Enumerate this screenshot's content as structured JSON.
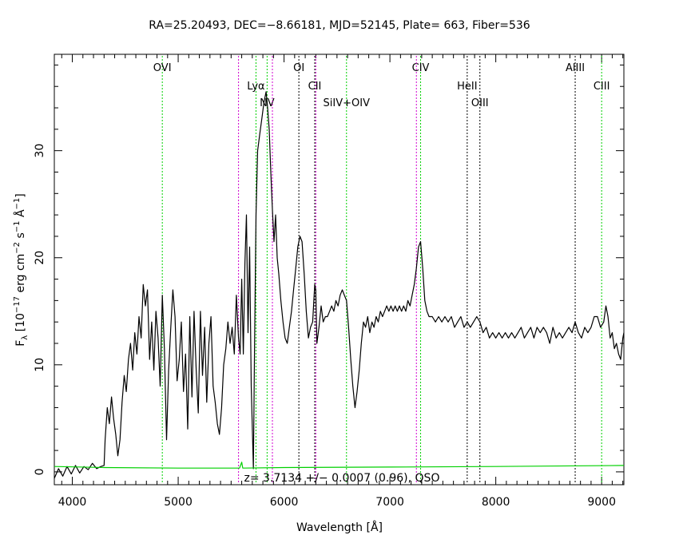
{
  "chart_data": {
    "type": "line",
    "title": "RA=25.20493, DEC=−8.66181, MJD=52145, Plate= 663, Fiber=536",
    "xlabel": "Wavelength [Å]",
    "ylabel_parts": [
      "F",
      "λ",
      " [10",
      "−17",
      " erg cm",
      "−2",
      " s",
      "−1",
      " Å",
      "−1",
      "]"
    ],
    "xlim": [
      3830,
      9210
    ],
    "ylim": [
      -1.2,
      39
    ],
    "x_ticks": [
      4000,
      5000,
      6000,
      7000,
      8000,
      9000
    ],
    "y_ticks": [
      0,
      10,
      20,
      30
    ],
    "redshift_label": "z= 3.7134 +/− 0.0007 (0.96), QSO",
    "series": [
      {
        "role": "flux",
        "color": "#000000",
        "points": [
          [
            3830,
            -0.6
          ],
          [
            3870,
            0.3
          ],
          [
            3910,
            -0.4
          ],
          [
            3950,
            0.5
          ],
          [
            3990,
            -0.2
          ],
          [
            4030,
            0.6
          ],
          [
            4070,
            -0.1
          ],
          [
            4110,
            0.5
          ],
          [
            4150,
            0.2
          ],
          [
            4190,
            0.8
          ],
          [
            4230,
            0.3
          ],
          [
            4270,
            0.5
          ],
          [
            4300,
            0.6
          ],
          [
            4310,
            3.0
          ],
          [
            4330,
            6.0
          ],
          [
            4350,
            4.5
          ],
          [
            4370,
            7.0
          ],
          [
            4390,
            5.0
          ],
          [
            4410,
            3.5
          ],
          [
            4430,
            1.5
          ],
          [
            4450,
            3.0
          ],
          [
            4470,
            6.5
          ],
          [
            4490,
            9.0
          ],
          [
            4510,
            7.5
          ],
          [
            4530,
            10.5
          ],
          [
            4550,
            12.0
          ],
          [
            4570,
            9.5
          ],
          [
            4590,
            13.0
          ],
          [
            4610,
            11.0
          ],
          [
            4630,
            14.5
          ],
          [
            4650,
            12.5
          ],
          [
            4670,
            17.5
          ],
          [
            4690,
            15.5
          ],
          [
            4710,
            17.0
          ],
          [
            4730,
            10.5
          ],
          [
            4750,
            14.0
          ],
          [
            4770,
            9.5
          ],
          [
            4790,
            15.0
          ],
          [
            4810,
            12.5
          ],
          [
            4830,
            8.0
          ],
          [
            4850,
            16.5
          ],
          [
            4870,
            11.5
          ],
          [
            4890,
            3.0
          ],
          [
            4910,
            9.5
          ],
          [
            4930,
            13.5
          ],
          [
            4950,
            17.0
          ],
          [
            4970,
            14.5
          ],
          [
            4990,
            8.5
          ],
          [
            5010,
            10.5
          ],
          [
            5030,
            14.0
          ],
          [
            5050,
            7.5
          ],
          [
            5070,
            11.0
          ],
          [
            5090,
            4.0
          ],
          [
            5110,
            14.5
          ],
          [
            5130,
            7.0
          ],
          [
            5150,
            15.0
          ],
          [
            5170,
            9.5
          ],
          [
            5190,
            5.5
          ],
          [
            5210,
            15.0
          ],
          [
            5230,
            9.0
          ],
          [
            5250,
            13.5
          ],
          [
            5270,
            6.5
          ],
          [
            5290,
            12.0
          ],
          [
            5310,
            14.5
          ],
          [
            5330,
            8.0
          ],
          [
            5350,
            6.5
          ],
          [
            5370,
            4.5
          ],
          [
            5390,
            3.5
          ],
          [
            5410,
            6.0
          ],
          [
            5430,
            10.0
          ],
          [
            5450,
            11.5
          ],
          [
            5470,
            14.0
          ],
          [
            5490,
            12.0
          ],
          [
            5510,
            13.5
          ],
          [
            5530,
            11.0
          ],
          [
            5550,
            16.5
          ],
          [
            5570,
            12.5
          ],
          [
            5585,
            11.0
          ],
          [
            5600,
            18.0
          ],
          [
            5615,
            11.0
          ],
          [
            5630,
            19.5
          ],
          [
            5645,
            24.0
          ],
          [
            5660,
            13.0
          ],
          [
            5675,
            21.0
          ],
          [
            5690,
            8.0
          ],
          [
            5710,
            0.3
          ],
          [
            5722,
            12.0
          ],
          [
            5735,
            24.0
          ],
          [
            5750,
            30.0
          ],
          [
            5770,
            31.5
          ],
          [
            5790,
            33.0
          ],
          [
            5810,
            34.5
          ],
          [
            5830,
            35.5
          ],
          [
            5845,
            34.0
          ],
          [
            5860,
            32.0
          ],
          [
            5875,
            28.0
          ],
          [
            5890,
            24.5
          ],
          [
            5905,
            21.5
          ],
          [
            5920,
            24.0
          ],
          [
            5935,
            20.0
          ],
          [
            5950,
            18.5
          ],
          [
            5970,
            16.0
          ],
          [
            5990,
            14.0
          ],
          [
            6010,
            12.5
          ],
          [
            6030,
            12.0
          ],
          [
            6050,
            13.5
          ],
          [
            6070,
            15.0
          ],
          [
            6090,
            17.0
          ],
          [
            6110,
            19.0
          ],
          [
            6130,
            21.0
          ],
          [
            6150,
            22.0
          ],
          [
            6170,
            21.5
          ],
          [
            6190,
            18.5
          ],
          [
            6210,
            15.0
          ],
          [
            6230,
            12.5
          ],
          [
            6250,
            13.5
          ],
          [
            6270,
            14.0
          ],
          [
            6290,
            17.5
          ],
          [
            6300,
            17.0
          ],
          [
            6310,
            12.0
          ],
          [
            6330,
            13.5
          ],
          [
            6350,
            15.5
          ],
          [
            6370,
            14.0
          ],
          [
            6390,
            14.5
          ],
          [
            6410,
            14.5
          ],
          [
            6430,
            15.0
          ],
          [
            6450,
            15.5
          ],
          [
            6470,
            15.0
          ],
          [
            6490,
            16.0
          ],
          [
            6510,
            15.5
          ],
          [
            6530,
            16.5
          ],
          [
            6550,
            17.0
          ],
          [
            6570,
            16.5
          ],
          [
            6590,
            16.0
          ],
          [
            6610,
            13.5
          ],
          [
            6630,
            10.5
          ],
          [
            6650,
            8.0
          ],
          [
            6670,
            6.0
          ],
          [
            6690,
            7.5
          ],
          [
            6710,
            9.5
          ],
          [
            6730,
            12.0
          ],
          [
            6750,
            14.0
          ],
          [
            6770,
            13.5
          ],
          [
            6790,
            14.5
          ],
          [
            6810,
            13.0
          ],
          [
            6830,
            14.0
          ],
          [
            6850,
            13.5
          ],
          [
            6870,
            14.5
          ],
          [
            6890,
            14.0
          ],
          [
            6910,
            15.0
          ],
          [
            6930,
            14.5
          ],
          [
            6950,
            15.0
          ],
          [
            6970,
            15.5
          ],
          [
            6990,
            15.0
          ],
          [
            7010,
            15.5
          ],
          [
            7030,
            15.0
          ],
          [
            7050,
            15.5
          ],
          [
            7070,
            15.0
          ],
          [
            7090,
            15.5
          ],
          [
            7110,
            15.0
          ],
          [
            7130,
            15.5
          ],
          [
            7150,
            15.0
          ],
          [
            7170,
            16.0
          ],
          [
            7190,
            15.5
          ],
          [
            7210,
            16.5
          ],
          [
            7230,
            17.5
          ],
          [
            7250,
            19.0
          ],
          [
            7270,
            21.0
          ],
          [
            7290,
            21.5
          ],
          [
            7310,
            19.0
          ],
          [
            7330,
            16.0
          ],
          [
            7350,
            15.0
          ],
          [
            7370,
            14.5
          ],
          [
            7400,
            14.5
          ],
          [
            7430,
            14.0
          ],
          [
            7460,
            14.5
          ],
          [
            7490,
            14.0
          ],
          [
            7520,
            14.5
          ],
          [
            7550,
            14.0
          ],
          [
            7580,
            14.5
          ],
          [
            7610,
            13.5
          ],
          [
            7640,
            14.0
          ],
          [
            7670,
            14.5
          ],
          [
            7700,
            13.5
          ],
          [
            7730,
            14.0
          ],
          [
            7760,
            13.5
          ],
          [
            7790,
            14.0
          ],
          [
            7820,
            14.5
          ],
          [
            7850,
            14.0
          ],
          [
            7880,
            13.0
          ],
          [
            7910,
            13.5
          ],
          [
            7940,
            12.5
          ],
          [
            7970,
            13.0
          ],
          [
            8000,
            12.5
          ],
          [
            8030,
            13.0
          ],
          [
            8060,
            12.5
          ],
          [
            8090,
            13.0
          ],
          [
            8120,
            12.5
          ],
          [
            8150,
            13.0
          ],
          [
            8180,
            12.5
          ],
          [
            8210,
            13.0
          ],
          [
            8240,
            13.5
          ],
          [
            8270,
            12.5
          ],
          [
            8300,
            13.0
          ],
          [
            8330,
            13.5
          ],
          [
            8360,
            12.5
          ],
          [
            8390,
            13.5
          ],
          [
            8420,
            13.0
          ],
          [
            8450,
            13.5
          ],
          [
            8480,
            13.0
          ],
          [
            8510,
            12.0
          ],
          [
            8540,
            13.5
          ],
          [
            8570,
            12.5
          ],
          [
            8600,
            13.0
          ],
          [
            8630,
            12.5
          ],
          [
            8660,
            13.0
          ],
          [
            8690,
            13.5
          ],
          [
            8720,
            13.0
          ],
          [
            8750,
            14.0
          ],
          [
            8780,
            13.0
          ],
          [
            8810,
            12.5
          ],
          [
            8840,
            13.5
          ],
          [
            8870,
            13.0
          ],
          [
            8900,
            13.5
          ],
          [
            8930,
            14.5
          ],
          [
            8960,
            14.5
          ],
          [
            8990,
            13.5
          ],
          [
            9020,
            14.0
          ],
          [
            9040,
            15.5
          ],
          [
            9060,
            14.5
          ],
          [
            9080,
            12.5
          ],
          [
            9100,
            13.0
          ],
          [
            9120,
            11.5
          ],
          [
            9140,
            12.0
          ],
          [
            9160,
            11.0
          ],
          [
            9180,
            10.5
          ],
          [
            9190,
            11.5
          ],
          [
            9200,
            12.5
          ],
          [
            9210,
            13.0
          ]
        ]
      },
      {
        "role": "error",
        "color": "#00d000",
        "points": [
          [
            3830,
            0.5
          ],
          [
            4300,
            0.4
          ],
          [
            5000,
            0.35
          ],
          [
            5580,
            0.35
          ],
          [
            5600,
            0.9
          ],
          [
            5610,
            0.35
          ],
          [
            6000,
            0.4
          ],
          [
            7000,
            0.45
          ],
          [
            8000,
            0.5
          ],
          [
            9210,
            0.6
          ]
        ]
      }
    ],
    "lines": [
      {
        "label": "OVI",
        "x": 4850,
        "color": "#00d000",
        "label_row": 1
      },
      {
        "label": "Lyα",
        "x": 5735,
        "color": "#00d000",
        "label_row": 2
      },
      {
        "label": "NV",
        "x": 5840,
        "color": "#00d000",
        "label_row": 3
      },
      {
        "label": "OI",
        "x": 6140,
        "color": "#000000",
        "label_row": 1
      },
      {
        "label": "CII",
        "x": 6290,
        "color": "#000000",
        "label_row": 2
      },
      {
        "label": "SiIV+OIV",
        "x": 6590,
        "color": "#00d000",
        "label_row": 3
      },
      {
        "label": "CIV",
        "x": 7290,
        "color": "#00d000",
        "label_row": 1
      },
      {
        "label": "HeII",
        "x": 7730,
        "color": "#000000",
        "label_row": 2
      },
      {
        "label": "OIII",
        "x": 7850,
        "color": "#000000",
        "label_row": 3
      },
      {
        "label": "AlIII",
        "x": 8750,
        "color": "#000000",
        "label_row": 1
      },
      {
        "label": "CIII",
        "x": 9000,
        "color": "#00d000",
        "label_row": 2
      }
    ],
    "unlabeled_lines": [
      {
        "x": 5570,
        "color": "#d000d0"
      },
      {
        "x": 5890,
        "color": "#d000d0"
      },
      {
        "x": 6300,
        "color": "#d000d0"
      },
      {
        "x": 7250,
        "color": "#d000d0"
      }
    ]
  }
}
